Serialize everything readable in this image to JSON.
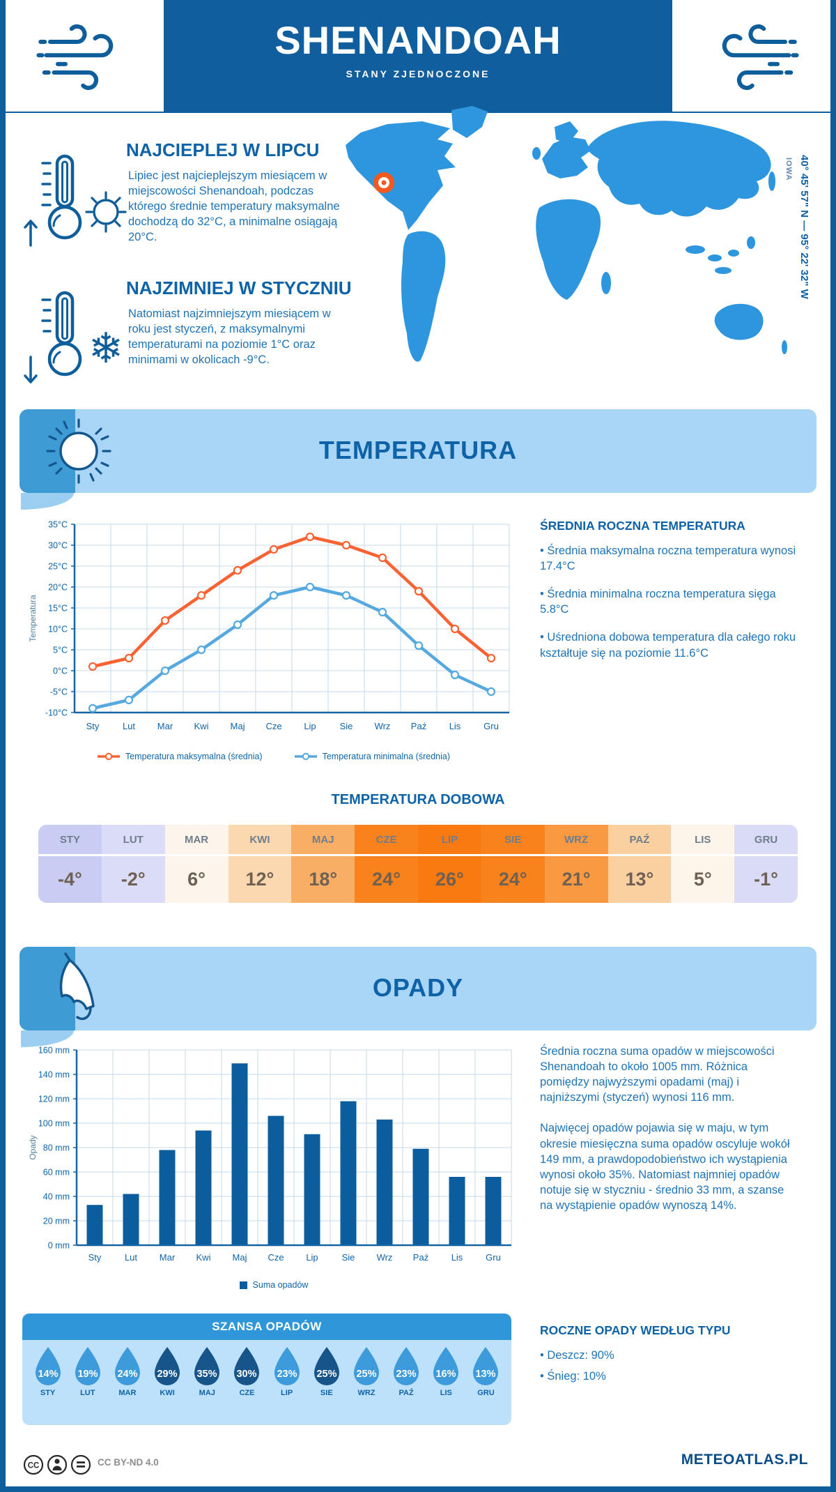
{
  "header": {
    "title": "SHENANDOAH",
    "subtitle": "STANY ZJEDNOCZONE"
  },
  "location": {
    "coordinates": "40° 45' 57\" N — 95° 22' 32\" W",
    "region": "IOWA"
  },
  "intro": {
    "warmest_title": "NAJCIEPLEJ W LIPCU",
    "warmest_text": "Lipiec jest najcieplejszym miesiącem w miejscowości Shenandoah, podczas którego średnie temperatury maksymalne dochodzą do 32°C, a minimalne osiągają 20°C.",
    "coldest_title": "NAJZIMNIEJ W STYCZNIU",
    "coldest_text": "Natomiast najzimniejszym miesiącem w roku jest styczeń, z maksymalnymi temperaturami na poziomie 1°C oraz minimami w okolicach -9°C."
  },
  "temperature_section": {
    "banner": "TEMPERATURA",
    "annual_heading": "ŚREDNIA ROCZNA TEMPERATURA",
    "bullets": [
      "Średnia maksymalna roczna temperatura wynosi 17.4°C",
      "Średnia minimalna roczna temperatura sięga 5.8°C",
      "Uśredniona dobowa temperatura dla całego roku kształtuje się na poziomie 11.6°C"
    ],
    "daily_heading": "TEMPERATURA DOBOWA"
  },
  "precipitation_section": {
    "banner": "OPADY",
    "paragraphs": [
      "Średnia roczna suma opadów w miejscowości Shenandoah to około 1005 mm. Różnica pomiędzy najwyższymi opadami (maj) i najniższymi (styczeń) wynosi 116 mm.",
      "Najwięcej opadów pojawia się w maju, w tym okresie miesięczna suma opadów oscyluje wokół 149 mm, a prawdopodobieństwo ich wystąpienia wynosi około 35%. Natomiast najmniej opadów notuje się w styczniu - średnio 33 mm, a szanse na wystąpienie opadów wynoszą 14%."
    ],
    "type_heading": "ROCZNE OPADY WEDŁUG TYPU",
    "type_bullets": [
      "Deszcz: 90%",
      "Śnieg: 10%"
    ],
    "chance_heading": "SZANSA OPADÓW"
  },
  "icons": {
    "wind": "wind-swirl-lines",
    "thermometer_up": "thermometer-with-up-arrow",
    "thermometer_down": "thermometer-with-down-arrow",
    "sun": "sun-with-rays",
    "snowflake_glyph": "❄",
    "umbrella": "closed-umbrella",
    "marker": "orange-location-dot",
    "cc_icons": "cc-by-nd-circles"
  },
  "colors": {
    "dark_blue": "#115E9E",
    "heading_blue": "#0E63A8",
    "text_blue": "#1F73B7",
    "banner_bg": "#A9D6F7",
    "banner_corner": "#3F9BD3",
    "map_blue": "#2E96DF",
    "grid": "#C3D9EB",
    "axis": "#1565A3"
  },
  "chart_data": [
    {
      "id": "temperature-line",
      "type": "line",
      "title": "TEMPERATURA",
      "categories": [
        "Sty",
        "Lut",
        "Mar",
        "Kwi",
        "Maj",
        "Cze",
        "Lip",
        "Sie",
        "Wrz",
        "Paź",
        "Lis",
        "Gru"
      ],
      "series": [
        {
          "name": "Temperatura maksymalna (średnia)",
          "color": "#F96232",
          "values": [
            1,
            3,
            12,
            18,
            24,
            29,
            32,
            30,
            27,
            19,
            10,
            3
          ]
        },
        {
          "name": "Temperatura minimalna (średnia)",
          "color": "#55A9E0",
          "values": [
            -9,
            -7,
            0,
            5,
            11,
            18,
            20,
            18,
            14,
            6,
            -1,
            -5
          ]
        }
      ],
      "ylabel": "Temperatura",
      "ylim": [
        -10,
        35
      ],
      "ytick_step": 5,
      "yunit": "°C",
      "grid": true,
      "legend_position": "bottom"
    },
    {
      "id": "daily-temperature-table",
      "type": "table",
      "title": "TEMPERATURA DOBOWA",
      "columns": [
        "STY",
        "LUT",
        "MAR",
        "KWI",
        "MAJ",
        "CZE",
        "LIP",
        "SIE",
        "WRZ",
        "PAŹ",
        "LIS",
        "GRU"
      ],
      "values": [
        "-4°",
        "-2°",
        "6°",
        "12°",
        "18°",
        "24°",
        "26°",
        "24°",
        "21°",
        "13°",
        "5°",
        "-1°"
      ],
      "cell_colors": [
        "#C9CDF3",
        "#DBDDF8",
        "#FDF4EC",
        "#FBD8AF",
        "#F9AE66",
        "#F8821B",
        "#F87A10",
        "#F8831D",
        "#F99A42",
        "#FBD0A0",
        "#FDF4EA",
        "#D9DBF7"
      ]
    },
    {
      "id": "precipitation-bar",
      "type": "bar",
      "title": "OPADY",
      "categories": [
        "Sty",
        "Lut",
        "Mar",
        "Kwi",
        "Maj",
        "Cze",
        "Lip",
        "Sie",
        "Wrz",
        "Paź",
        "Lis",
        "Gru"
      ],
      "values": [
        33,
        42,
        78,
        94,
        149,
        106,
        91,
        118,
        103,
        79,
        56,
        56
      ],
      "ylabel": "Opady",
      "ylim": [
        0,
        160
      ],
      "ytick_step": 20,
      "yunit": "mm",
      "bar_color": "#0B5D9E",
      "legend": "Suma opadów",
      "grid": true
    },
    {
      "id": "precipitation-chance",
      "type": "pictogram",
      "title": "SZANSA OPADÓW",
      "categories": [
        "STY",
        "LUT",
        "MAR",
        "KWI",
        "MAJ",
        "CZE",
        "LIP",
        "SIE",
        "WRZ",
        "PAŹ",
        "LIS",
        "GRU"
      ],
      "values_pct": [
        14,
        19,
        24,
        29,
        35,
        30,
        23,
        25,
        25,
        23,
        16,
        13
      ],
      "dark": [
        false,
        false,
        false,
        true,
        true,
        true,
        false,
        true,
        false,
        false,
        false,
        false
      ],
      "drop_light": "#3E9BDB",
      "drop_dark": "#17548A"
    }
  ],
  "footer": {
    "license": "CC BY-ND 4.0",
    "brand": "METEOATLAS.PL"
  }
}
